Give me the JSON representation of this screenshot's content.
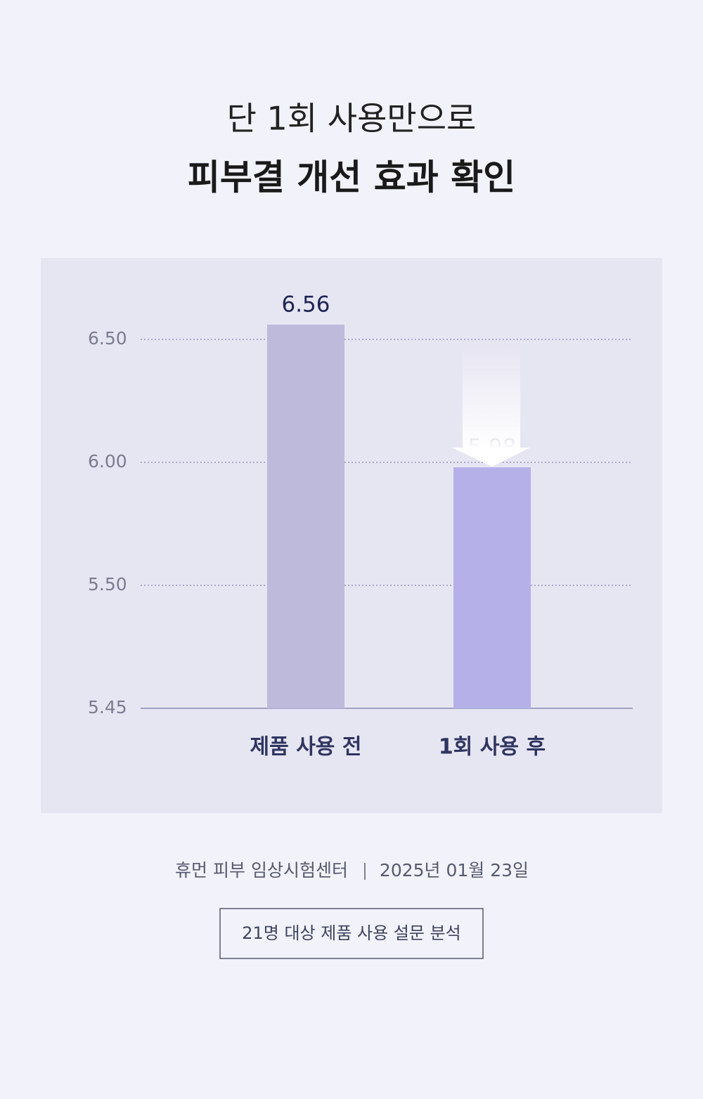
{
  "title": "단 1회 사용만으로",
  "subtitle": "피부결 개선 효과 확인",
  "chart_data": {
    "type": "bar",
    "categories": [
      "제품 사용 전",
      "1회 사용 후"
    ],
    "values": [
      6.56,
      5.98
    ],
    "colors": [
      "#bdbadb",
      "#b5b1e8"
    ],
    "ylim": [
      5.45,
      6.6
    ],
    "yticks": [
      5.45,
      {
        "value": 5.5,
        "label": "5.50"
      },
      {
        "value": 6,
        "label": "6.00"
      },
      {
        "value": 6.5,
        "label": "6.50"
      }
    ],
    "grid": true
  },
  "footer": {
    "source": "휴먼 피부 임상시험센터",
    "date": "2025년 01월 23일",
    "note": "21명 대상 제품 사용 설문 분석"
  }
}
